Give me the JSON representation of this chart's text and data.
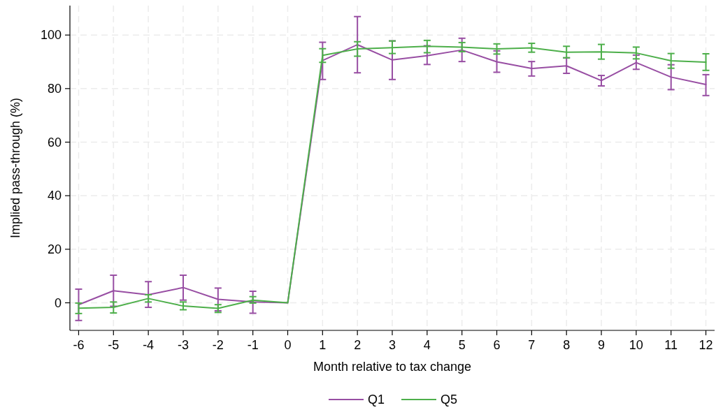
{
  "chart_data": {
    "type": "line",
    "xlabel": "Month relative to tax change",
    "ylabel": "Implied pass-through (%)",
    "x": [
      -6,
      -5,
      -4,
      -3,
      -2,
      -1,
      0,
      1,
      2,
      3,
      4,
      5,
      6,
      7,
      8,
      9,
      10,
      11,
      12
    ],
    "xlim": [
      -6.25,
      12.25
    ],
    "xticks": [
      -6,
      -5,
      -4,
      -3,
      -2,
      -1,
      0,
      1,
      2,
      3,
      4,
      5,
      6,
      7,
      8,
      9,
      10,
      11,
      12
    ],
    "ylim": [
      -10.3,
      111
    ],
    "yticks": [
      0,
      20,
      40,
      60,
      80,
      100
    ],
    "grid": true,
    "legend": "bottom",
    "marker": "none",
    "line_style": "solid",
    "series": [
      {
        "name": "Q1",
        "color": "#984ea3",
        "values": [
          -0.7,
          4.5,
          3.0,
          5.7,
          1.3,
          0.3,
          0,
          90.5,
          96.4,
          90.7,
          92.3,
          94.4,
          90.0,
          87.5,
          88.5,
          83.0,
          89.7,
          84.3,
          81.5
        ],
        "errors": [
          [
            -6.6,
            5.1
          ],
          [
            -1.3,
            10.3
          ],
          [
            -1.7,
            7.9
          ],
          [
            1.0,
            10.3
          ],
          [
            -3.0,
            5.5
          ],
          [
            -3.9,
            4.3
          ],
          null,
          [
            83.4,
            97.3
          ],
          [
            85.9,
            106.9
          ],
          [
            83.4,
            97.8
          ],
          [
            89.0,
            96.0
          ],
          [
            90.1,
            98.8
          ],
          [
            86.1,
            94.1
          ],
          [
            84.7,
            90.1
          ],
          [
            85.7,
            91.5
          ],
          [
            81.0,
            84.9
          ],
          [
            87.2,
            92.5
          ],
          [
            79.6,
            88.9
          ],
          [
            77.4,
            85.2
          ]
        ]
      },
      {
        "name": "Q5",
        "color": "#4daf4a",
        "values": [
          -2.0,
          -1.7,
          1.6,
          -1.2,
          -2.1,
          1.0,
          0,
          92.4,
          94.8,
          95.3,
          95.8,
          95.5,
          94.8,
          95.2,
          93.6,
          93.7,
          93.3,
          90.4,
          89.9
        ],
        "errors": [
          [
            -4.0,
            -0.1
          ],
          [
            -3.8,
            0.3
          ],
          [
            0.3,
            3.0
          ],
          [
            -2.6,
            0.3
          ],
          [
            -3.6,
            -0.7
          ],
          [
            -0.1,
            2.3
          ],
          null,
          [
            89.8,
            94.9
          ],
          [
            92.1,
            97.5
          ],
          [
            93.1,
            97.8
          ],
          [
            93.4,
            98.0
          ],
          [
            93.8,
            97.2
          ],
          [
            92.9,
            96.7
          ],
          [
            93.6,
            96.9
          ],
          [
            91.5,
            95.8
          ],
          [
            91.0,
            96.5
          ],
          [
            91.1,
            95.5
          ],
          [
            87.6,
            93.1
          ],
          [
            86.8,
            93.0
          ]
        ]
      }
    ]
  }
}
